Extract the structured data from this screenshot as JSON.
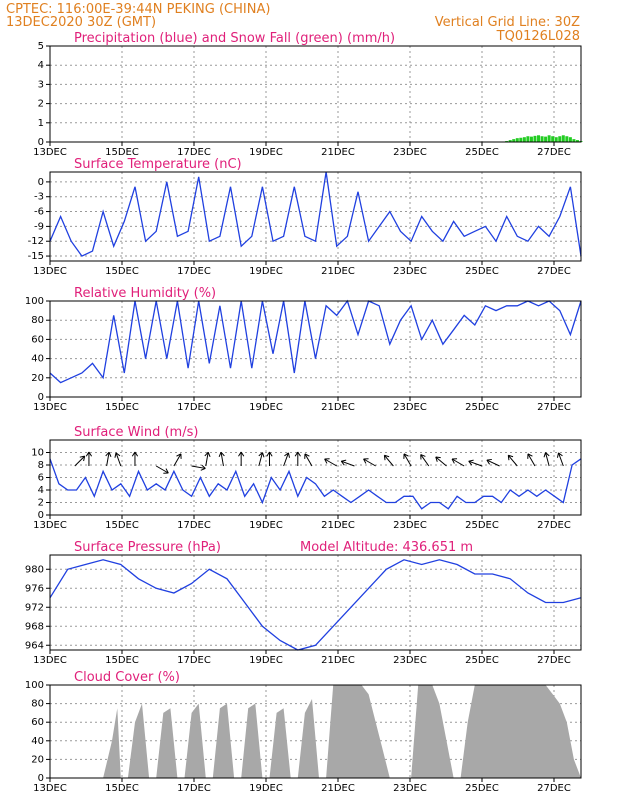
{
  "header": {
    "line1": "CPTEC:   116:00E-39:44N   PEKING (CHINA)",
    "line2": "13DEC2020 30Z (GMT)",
    "grid_note": "Vertical Grid Line: 30Z",
    "code": "TQ0126L028"
  },
  "colors": {
    "header": "#e08020",
    "panel_title": "#e0207a",
    "line": "#2040e0",
    "snow": "#22cc22",
    "cloud": "#a8a8a8"
  },
  "chart_data": [
    {
      "type": "bar",
      "title": "Precipitation (blue) and Snow Fall (green) (mm/h)",
      "x_ticks": [
        "13DEC",
        "15DEC",
        "17DEC",
        "19DEC",
        "21DEC",
        "23DEC",
        "25DEC",
        "27DEC"
      ],
      "yticks": [
        "0",
        "1",
        "2",
        "3",
        "4",
        "5"
      ],
      "ylim": [
        0,
        5
      ],
      "grid": true,
      "series": [
        {
          "name": "Precipitation",
          "color": "#2040e0",
          "values": []
        },
        {
          "name": "Snow Fall",
          "color": "#22cc22",
          "x": [
            12.9,
            13.0,
            13.1,
            13.2,
            13.3,
            13.4,
            13.5,
            13.6,
            13.7,
            13.8,
            13.9,
            14.0,
            14.1,
            14.2,
            14.3,
            14.4,
            14.5,
            14.6,
            14.7,
            14.8,
            14.9,
            15.0
          ],
          "values": [
            0.05,
            0.1,
            0.15,
            0.2,
            0.22,
            0.25,
            0.3,
            0.28,
            0.32,
            0.35,
            0.3,
            0.28,
            0.35,
            0.3,
            0.25,
            0.3,
            0.35,
            0.3,
            0.25,
            0.15,
            0.1,
            0.05
          ]
        }
      ]
    },
    {
      "type": "line",
      "title": "Surface Temperature (nC)",
      "x_ticks": [
        "13DEC",
        "15DEC",
        "17DEC",
        "19DEC",
        "21DEC",
        "23DEC",
        "25DEC",
        "27DEC"
      ],
      "yticks": [
        "0",
        "-3",
        "-6",
        "-9",
        "-12",
        "-15"
      ],
      "ylim": [
        -16,
        2
      ],
      "grid": true,
      "x": [
        0,
        0.3,
        0.6,
        0.9,
        1.2,
        1.5,
        1.8,
        2.1,
        2.4,
        2.7,
        3.0,
        3.3,
        3.6,
        3.9,
        4.2,
        4.5,
        4.8,
        5.1,
        5.4,
        5.7,
        6.0,
        6.3,
        6.6,
        6.9,
        7.2,
        7.5,
        7.8,
        8.1,
        8.4,
        8.7,
        9.0,
        9.3,
        9.6,
        9.9,
        10.2,
        10.5,
        10.8,
        11.1,
        11.4,
        11.7,
        12.0,
        12.3,
        12.6,
        12.9,
        13.2,
        13.5,
        13.8,
        14.1,
        14.4,
        14.7,
        15.0
      ],
      "values": [
        -12,
        -7,
        -12,
        -15,
        -14,
        -6,
        -13,
        -8,
        -1,
        -12,
        -10,
        0,
        -11,
        -10,
        1,
        -12,
        -11,
        -1,
        -13,
        -11,
        -1,
        -12,
        -11,
        -1,
        -11,
        -12,
        2,
        -13,
        -11,
        -2,
        -12,
        -9,
        -6,
        -10,
        -12,
        -7,
        -10,
        -12,
        -8,
        -11,
        -10,
        -9,
        -12,
        -7,
        -11,
        -12,
        -9,
        -11,
        -7,
        -1,
        -15
      ],
      "xlim": [
        0,
        15
      ]
    },
    {
      "type": "line",
      "title": "Relative Humidity (%)",
      "x_ticks": [
        "13DEC",
        "15DEC",
        "17DEC",
        "19DEC",
        "21DEC",
        "23DEC",
        "25DEC",
        "27DEC"
      ],
      "yticks": [
        "0",
        "20",
        "40",
        "60",
        "80",
        "100"
      ],
      "ylim": [
        0,
        100
      ],
      "grid": true,
      "x": [
        0,
        0.3,
        0.6,
        0.9,
        1.2,
        1.5,
        1.8,
        2.1,
        2.4,
        2.7,
        3.0,
        3.3,
        3.6,
        3.9,
        4.2,
        4.5,
        4.8,
        5.1,
        5.4,
        5.7,
        6.0,
        6.3,
        6.6,
        6.9,
        7.2,
        7.5,
        7.8,
        8.1,
        8.4,
        8.7,
        9.0,
        9.3,
        9.6,
        9.9,
        10.2,
        10.5,
        10.8,
        11.1,
        11.4,
        11.7,
        12.0,
        12.3,
        12.6,
        12.9,
        13.2,
        13.5,
        13.8,
        14.1,
        14.4,
        14.7,
        15.0
      ],
      "values": [
        25,
        15,
        20,
        25,
        35,
        20,
        85,
        25,
        100,
        40,
        100,
        40,
        100,
        30,
        100,
        35,
        95,
        30,
        100,
        30,
        100,
        45,
        100,
        25,
        100,
        40,
        95,
        85,
        100,
        65,
        100,
        95,
        55,
        80,
        95,
        60,
        80,
        55,
        70,
        85,
        75,
        95,
        90,
        95,
        95,
        100,
        95,
        100,
        90,
        65,
        100
      ],
      "xlim": [
        0,
        15
      ]
    },
    {
      "type": "line",
      "title": "Surface Wind (m/s)",
      "x_ticks": [
        "13DEC",
        "15DEC",
        "17DEC",
        "19DEC",
        "21DEC",
        "23DEC",
        "25DEC",
        "27DEC"
      ],
      "yticks": [
        "0",
        "2",
        "4",
        "6",
        "8",
        "10"
      ],
      "ylim": [
        0,
        12
      ],
      "grid": true,
      "x": [
        0,
        0.25,
        0.5,
        0.75,
        1.0,
        1.25,
        1.5,
        1.75,
        2.0,
        2.25,
        2.5,
        2.75,
        3.0,
        3.25,
        3.5,
        3.75,
        4.0,
        4.25,
        4.5,
        4.75,
        5.0,
        5.25,
        5.5,
        5.75,
        6.0,
        6.25,
        6.5,
        6.75,
        7.0,
        7.25,
        7.5,
        7.75,
        8.0,
        8.25,
        8.5,
        8.75,
        9.0,
        9.25,
        9.5,
        9.75,
        10.0,
        10.25,
        10.5,
        10.75,
        11.0,
        11.25,
        11.5,
        11.75,
        12.0,
        12.25,
        12.5,
        12.75,
        13.0,
        13.25,
        13.5,
        13.75,
        14.0,
        14.25,
        14.5,
        14.75,
        15.0
      ],
      "values": [
        9,
        5,
        4,
        4,
        6,
        3,
        7,
        4,
        5,
        3,
        7,
        4,
        5,
        4,
        7,
        4,
        3,
        6,
        3,
        5,
        4,
        7,
        3,
        5,
        2,
        6,
        4,
        7,
        3,
        6,
        5,
        3,
        4,
        3,
        2,
        3,
        4,
        3,
        2,
        2,
        3,
        3,
        1,
        2,
        2,
        1,
        3,
        2,
        2,
        3,
        3,
        2,
        4,
        3,
        4,
        3,
        4,
        3,
        2,
        8,
        9
      ],
      "arrows": [
        {
          "x": 0.7,
          "dir": 45
        },
        {
          "x": 1.1,
          "dir": 0
        },
        {
          "x": 1.6,
          "dir": 10
        },
        {
          "x": 2.0,
          "dir": -20
        },
        {
          "x": 2.4,
          "dir": 0
        },
        {
          "x": 3.0,
          "dir": 120
        },
        {
          "x": 3.5,
          "dir": 30
        },
        {
          "x": 4.0,
          "dir": 100
        },
        {
          "x": 4.4,
          "dir": 10
        },
        {
          "x": 4.9,
          "dir": -10
        },
        {
          "x": 5.4,
          "dir": 0
        },
        {
          "x": 5.9,
          "dir": 15
        },
        {
          "x": 6.2,
          "dir": 0
        },
        {
          "x": 6.6,
          "dir": 20
        },
        {
          "x": 7.0,
          "dir": 0
        },
        {
          "x": 7.4,
          "dir": -30
        },
        {
          "x": 8.1,
          "dir": -60
        },
        {
          "x": 8.6,
          "dir": -70
        },
        {
          "x": 9.2,
          "dir": -60
        },
        {
          "x": 9.7,
          "dir": -40
        },
        {
          "x": 10.2,
          "dir": -30
        },
        {
          "x": 10.7,
          "dir": -35
        },
        {
          "x": 11.2,
          "dir": -50
        },
        {
          "x": 11.7,
          "dir": -60
        },
        {
          "x": 12.2,
          "dir": -70
        },
        {
          "x": 12.7,
          "dir": -65
        },
        {
          "x": 13.2,
          "dir": -40
        },
        {
          "x": 13.7,
          "dir": -30
        },
        {
          "x": 14.1,
          "dir": -15
        },
        {
          "x": 14.5,
          "dir": -20
        }
      ],
      "xlim": [
        0,
        15
      ]
    },
    {
      "type": "line",
      "title": "Surface Pressure (hPa)",
      "annotation": "Model Altitude: 436.651  m",
      "x_ticks": [
        "13DEC",
        "15DEC",
        "17DEC",
        "19DEC",
        "21DEC",
        "23DEC",
        "25DEC",
        "27DEC"
      ],
      "yticks": [
        "964",
        "968",
        "972",
        "976",
        "980"
      ],
      "ylim": [
        963,
        983
      ],
      "grid": true,
      "x": [
        0,
        0.5,
        1.0,
        1.5,
        2.0,
        2.5,
        3.0,
        3.5,
        4.0,
        4.5,
        5.0,
        5.5,
        6.0,
        6.5,
        7.0,
        7.5,
        8.0,
        8.5,
        9.0,
        9.5,
        10.0,
        10.5,
        11.0,
        11.5,
        12.0,
        12.5,
        13.0,
        13.5,
        14.0,
        14.5,
        15.0
      ],
      "values": [
        974,
        980,
        981,
        982,
        981,
        978,
        976,
        975,
        977,
        980,
        978,
        973,
        968,
        965,
        963,
        964,
        968,
        972,
        976,
        980,
        982,
        981,
        982,
        981,
        979,
        979,
        978,
        975,
        973,
        973,
        974
      ],
      "xlim": [
        0,
        15
      ]
    },
    {
      "type": "area",
      "title": "Cloud Cover (%)",
      "x_ticks": [
        "13DEC",
        "15DEC",
        "17DEC",
        "19DEC",
        "21DEC",
        "23DEC",
        "25DEC",
        "27DEC"
      ],
      "yticks": [
        "0",
        "20",
        "40",
        "60",
        "80",
        "100"
      ],
      "ylim": [
        0,
        100
      ],
      "grid": true,
      "x": [
        0,
        0.5,
        1.0,
        1.5,
        1.75,
        1.9,
        2.0,
        2.2,
        2.4,
        2.6,
        2.8,
        3.0,
        3.2,
        3.4,
        3.6,
        3.8,
        4.0,
        4.2,
        4.4,
        4.6,
        4.8,
        5.0,
        5.2,
        5.4,
        5.6,
        5.8,
        6.0,
        6.2,
        6.4,
        6.6,
        6.8,
        7.0,
        7.2,
        7.4,
        7.6,
        7.8,
        8.0,
        8.2,
        8.4,
        8.6,
        8.8,
        9.0,
        9.2,
        9.4,
        9.6,
        9.8,
        10.0,
        10.2,
        10.4,
        10.6,
        10.8,
        11.0,
        11.2,
        11.4,
        11.6,
        11.8,
        12.0,
        12.2,
        12.4,
        12.6,
        12.8,
        13.0,
        13.2,
        13.4,
        13.6,
        13.8,
        14.0,
        14.2,
        14.4,
        14.6,
        14.8,
        15.0
      ],
      "values": [
        0,
        0,
        0,
        0,
        40,
        75,
        0,
        0,
        60,
        80,
        0,
        0,
        70,
        75,
        0,
        0,
        70,
        80,
        0,
        0,
        75,
        80,
        0,
        0,
        75,
        80,
        0,
        0,
        70,
        75,
        0,
        0,
        70,
        85,
        0,
        0,
        100,
        100,
        100,
        100,
        100,
        90,
        60,
        30,
        0,
        0,
        0,
        0,
        100,
        100,
        100,
        80,
        40,
        0,
        0,
        60,
        100,
        100,
        100,
        100,
        100,
        100,
        100,
        100,
        100,
        100,
        100,
        90,
        80,
        60,
        20,
        0
      ],
      "xlim": [
        0,
        15
      ]
    }
  ]
}
